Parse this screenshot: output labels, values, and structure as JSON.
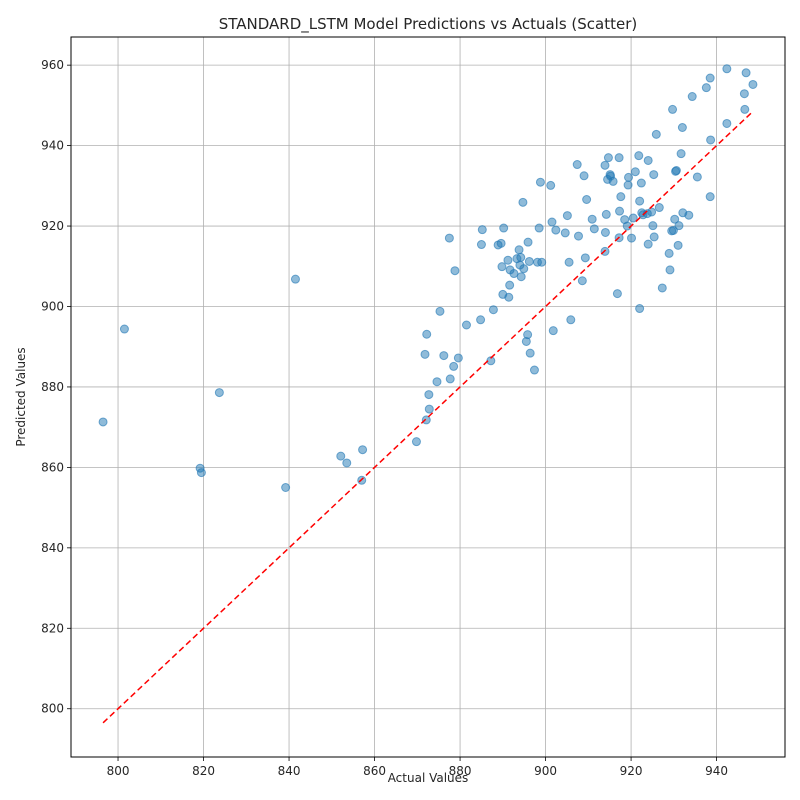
{
  "chart_data": {
    "type": "scatter",
    "title": "STANDARD_LSTM Model Predictions vs Actuals (Scatter)",
    "xlabel": "Actual Values",
    "ylabel": "Predicted Values",
    "xlim": [
      789,
      956
    ],
    "ylim": [
      788,
      967
    ],
    "xticks": [
      800,
      820,
      840,
      860,
      880,
      900,
      920,
      940
    ],
    "yticks": [
      800,
      820,
      840,
      860,
      880,
      900,
      920,
      940,
      960
    ],
    "grid": true,
    "point_color": "#1f77b4",
    "line_color": "#ff0000",
    "reference_line": {
      "style": "dashed",
      "from": [
        796.5,
        796.5
      ],
      "to": [
        948.5,
        948.5
      ]
    },
    "points": [
      [
        796.5,
        871.3
      ],
      [
        801.5,
        894.4
      ],
      [
        819.2,
        859.8
      ],
      [
        819.5,
        858.7
      ],
      [
        823.7,
        878.6
      ],
      [
        839.2,
        855.0
      ],
      [
        841.5,
        906.8
      ],
      [
        852.1,
        862.8
      ],
      [
        853.5,
        861.1
      ],
      [
        857.2,
        864.4
      ],
      [
        857.0,
        856.8
      ],
      [
        869.8,
        866.4
      ],
      [
        871.8,
        888.1
      ],
      [
        872.1,
        871.8
      ],
      [
        872.2,
        893.1
      ],
      [
        872.8,
        874.5
      ],
      [
        872.7,
        878.1
      ],
      [
        874.6,
        881.3
      ],
      [
        875.3,
        898.8
      ],
      [
        876.2,
        887.8
      ],
      [
        877.5,
        917.0
      ],
      [
        877.7,
        882.0
      ],
      [
        878.5,
        885.1
      ],
      [
        878.8,
        908.9
      ],
      [
        879.6,
        887.2
      ],
      [
        881.5,
        895.4
      ],
      [
        884.8,
        896.7
      ],
      [
        885.0,
        915.4
      ],
      [
        885.2,
        919.1
      ],
      [
        887.2,
        886.5
      ],
      [
        887.8,
        899.2
      ],
      [
        888.9,
        915.3
      ],
      [
        889.6,
        915.7
      ],
      [
        889.8,
        909.9
      ],
      [
        890.0,
        903.0
      ],
      [
        890.2,
        919.5
      ],
      [
        891.2,
        911.5
      ],
      [
        891.4,
        902.3
      ],
      [
        891.6,
        905.3
      ],
      [
        891.7,
        909.1
      ],
      [
        892.6,
        908.2
      ],
      [
        893.3,
        911.9
      ],
      [
        893.8,
        914.1
      ],
      [
        894.0,
        910.3
      ],
      [
        894.3,
        907.4
      ],
      [
        894.2,
        912.2
      ],
      [
        894.7,
        925.9
      ],
      [
        894.9,
        909.4
      ],
      [
        895.5,
        891.3
      ],
      [
        895.8,
        893.0
      ],
      [
        895.9,
        916.0
      ],
      [
        896.2,
        911.2
      ],
      [
        896.4,
        888.4
      ],
      [
        897.4,
        884.2
      ],
      [
        898.1,
        911.0
      ],
      [
        898.5,
        919.5
      ],
      [
        898.8,
        930.9
      ],
      [
        899.1,
        911.0
      ],
      [
        901.2,
        930.1
      ],
      [
        901.5,
        921.0
      ],
      [
        901.8,
        894.0
      ],
      [
        902.4,
        919.0
      ],
      [
        904.6,
        918.3
      ],
      [
        905.1,
        922.6
      ],
      [
        905.5,
        911.0
      ],
      [
        905.9,
        896.7
      ],
      [
        907.4,
        935.3
      ],
      [
        907.7,
        917.5
      ],
      [
        908.6,
        906.4
      ],
      [
        909.0,
        932.5
      ],
      [
        909.3,
        912.1
      ],
      [
        909.6,
        926.6
      ],
      [
        910.9,
        921.7
      ],
      [
        911.4,
        919.3
      ],
      [
        913.9,
        913.7
      ],
      [
        913.9,
        935.1
      ],
      [
        914.0,
        918.4
      ],
      [
        914.2,
        922.9
      ],
      [
        914.5,
        931.6
      ],
      [
        914.7,
        937.0
      ],
      [
        915.1,
        932.8
      ],
      [
        915.2,
        932.4
      ],
      [
        915.8,
        931.1
      ],
      [
        916.8,
        903.2
      ],
      [
        917.2,
        937.0
      ],
      [
        917.3,
        923.7
      ],
      [
        917.2,
        917.1
      ],
      [
        917.6,
        927.3
      ],
      [
        918.5,
        921.6
      ],
      [
        919.1,
        920.0
      ],
      [
        919.4,
        932.1
      ],
      [
        919.3,
        930.2
      ],
      [
        920.1,
        917.0
      ],
      [
        920.5,
        922.0
      ],
      [
        921.0,
        933.5
      ],
      [
        921.8,
        937.5
      ],
      [
        922.0,
        926.2
      ],
      [
        922.0,
        899.5
      ],
      [
        922.4,
        930.7
      ],
      [
        922.5,
        923.3
      ],
      [
        922.8,
        922.8
      ],
      [
        923.8,
        923.1
      ],
      [
        924.0,
        936.3
      ],
      [
        924.0,
        915.5
      ],
      [
        924.8,
        923.5
      ],
      [
        925.1,
        920.1
      ],
      [
        925.3,
        932.8
      ],
      [
        925.4,
        917.3
      ],
      [
        925.9,
        942.8
      ],
      [
        926.6,
        924.6
      ],
      [
        927.3,
        904.6
      ],
      [
        928.9,
        913.2
      ],
      [
        929.1,
        909.1
      ],
      [
        929.5,
        918.8
      ],
      [
        929.7,
        949.0
      ],
      [
        929.9,
        918.9
      ],
      [
        930.2,
        921.7
      ],
      [
        930.4,
        933.6
      ],
      [
        930.6,
        933.8
      ],
      [
        931.0,
        915.2
      ],
      [
        931.2,
        920.1
      ],
      [
        931.7,
        938.0
      ],
      [
        932.0,
        944.5
      ],
      [
        932.1,
        923.3
      ],
      [
        933.5,
        922.7
      ],
      [
        934.3,
        952.2
      ],
      [
        935.5,
        932.2
      ],
      [
        937.6,
        954.4
      ],
      [
        938.5,
        927.3
      ],
      [
        938.5,
        956.8
      ],
      [
        938.6,
        941.4
      ],
      [
        942.4,
        945.5
      ],
      [
        942.4,
        959.1
      ],
      [
        946.5,
        952.9
      ],
      [
        946.6,
        949.0
      ],
      [
        946.9,
        958.1
      ],
      [
        948.5,
        955.2
      ]
    ]
  }
}
